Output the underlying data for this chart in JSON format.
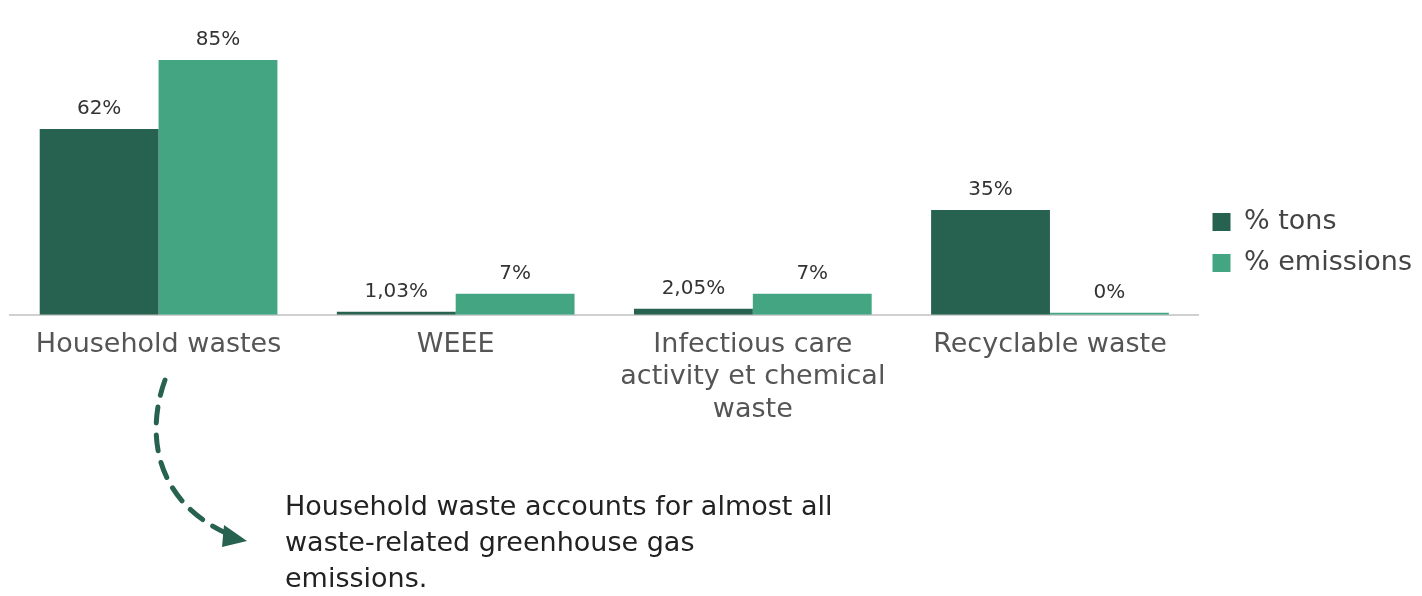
{
  "chart_data": {
    "type": "bar",
    "categories": [
      "Household wastes",
      "WEEE",
      "Infectious care activity et chemical waste",
      "Recyclable waste"
    ],
    "series": [
      {
        "name": "% tons",
        "color": "#276150",
        "values": [
          62,
          1.03,
          2.05,
          35
        ],
        "value_labels": [
          "62%",
          "1,03%",
          "2,05%",
          "35%"
        ]
      },
      {
        "name": "% emissions",
        "color": "#43a582",
        "values": [
          85,
          7,
          7,
          0
        ],
        "value_labels": [
          "85%",
          "7%",
          "7%",
          "0%"
        ]
      }
    ],
    "legend": "right",
    "grid": false,
    "tick_labels": "x",
    "annotations": [
      "Household waste accounts for almost all waste-related greenhouse gas emissions."
    ]
  }
}
